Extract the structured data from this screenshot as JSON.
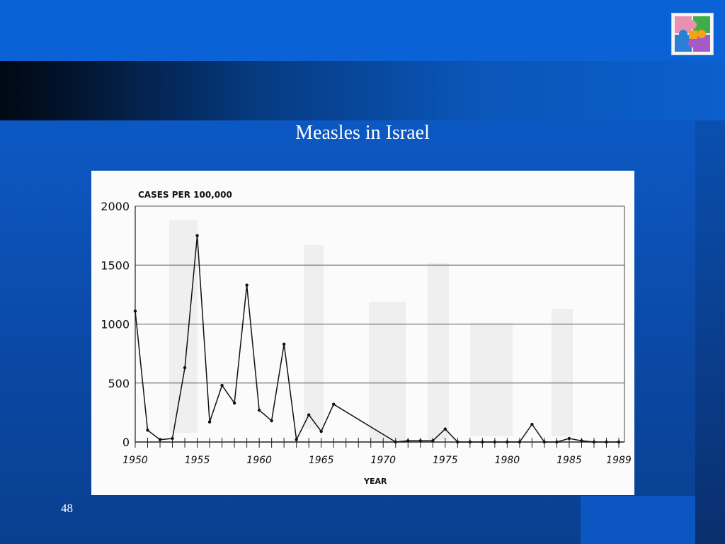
{
  "slide": {
    "title": "Measles  in Israel",
    "number": "48"
  },
  "logo": {
    "icon": "puzzle-icon",
    "colors": [
      "#e98fb0",
      "#3fae49",
      "#f2a21c",
      "#2a7fd4",
      "#a65ac8"
    ]
  },
  "colors": {
    "background": "#0a5fd0",
    "dark_bar": "#000814",
    "chart_line": "#111111"
  },
  "chart_data": {
    "type": "line",
    "title": "",
    "ylabel": "CASES PER 100,000",
    "xlabel": "YEAR",
    "ylim": [
      0,
      2000
    ],
    "xlim": [
      1950,
      1989
    ],
    "yticks": [
      0,
      500,
      1000,
      1500,
      2000
    ],
    "xtick_labels": [
      "1950",
      "1955",
      "1960",
      "1965",
      "1970",
      "1975",
      "1980",
      "1985",
      "1989"
    ],
    "grid": true,
    "series": [
      {
        "name": "",
        "x": [
          1950,
          1951,
          1952,
          1953,
          1954,
          1955,
          1956,
          1957,
          1958,
          1959,
          1960,
          1961,
          1962,
          1963,
          1964,
          1965,
          1966,
          1971,
          1972,
          1973,
          1974,
          1975,
          1976,
          1977,
          1978,
          1979,
          1980,
          1981,
          1982,
          1983,
          1984,
          1985,
          1986,
          1987,
          1988,
          1989
        ],
        "y": [
          1110,
          100,
          20,
          30,
          630,
          1750,
          170,
          480,
          330,
          1330,
          270,
          180,
          830,
          20,
          230,
          90,
          320,
          0,
          10,
          10,
          10,
          110,
          0,
          0,
          0,
          0,
          0,
          0,
          150,
          0,
          0,
          30,
          10,
          0,
          0,
          0
        ]
      }
    ]
  }
}
